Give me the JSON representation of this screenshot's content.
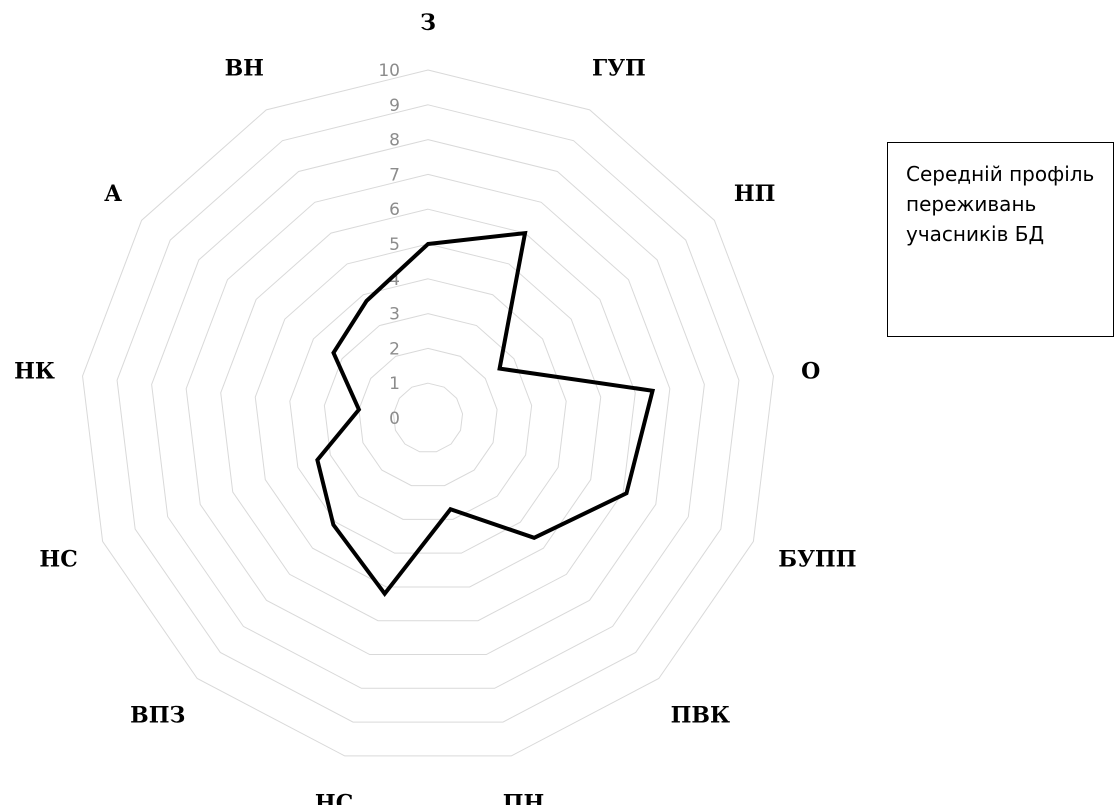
{
  "chart_data": {
    "type": "radar",
    "categories": [
      "З",
      "ГУП",
      "НП",
      "О",
      "БУПП",
      "ПВК",
      "ПН",
      "НС",
      "ВПЗ",
      "НС",
      "НК",
      "А",
      "ВН"
    ],
    "series": [
      {
        "name": "Середній профіль переживань учасників БД",
        "values": [
          5,
          6,
          2.5,
          6.5,
          6.1,
          4.6,
          2.7,
          5.2,
          4.1,
          3.4,
          2,
          3.3,
          3.8
        ],
        "color": "#000000"
      }
    ],
    "rlim": [
      0,
      10
    ],
    "ticks": [
      "0",
      "1",
      "2",
      "3",
      "4",
      "5",
      "6",
      "7",
      "8",
      "9",
      "10"
    ],
    "grid": true,
    "legend": "right"
  }
}
